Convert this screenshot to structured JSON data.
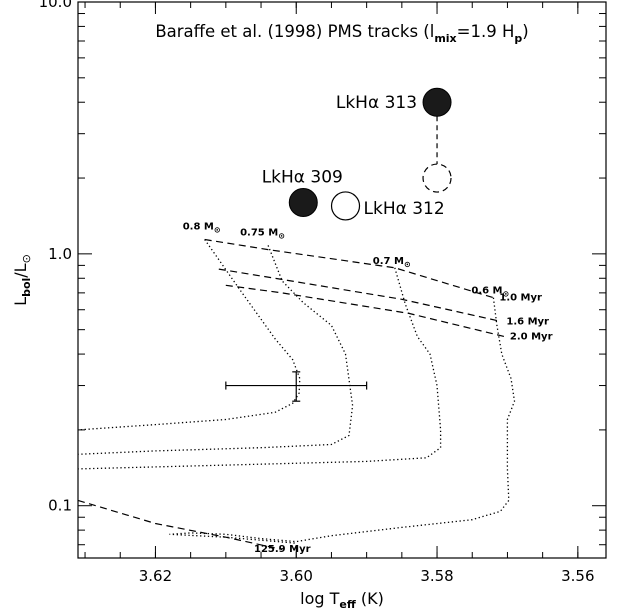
{
  "chart_data": {
    "type": "scatter",
    "title": "Baraffe et al. (1998) PMS tracks (l",
    "title_sub1": "mix",
    "title_mid": "=1.9 H",
    "title_sub2": "p",
    "title_end": ")",
    "xlabel": "log T",
    "xlabel_sub": "eff",
    "xlabel_end": " (K)",
    "ylabel": "L",
    "ylabel_sub1": "bol",
    "ylabel_mid": "/L",
    "ylabel_sub2": "⊙",
    "xlim": [
      3.631,
      3.556
    ],
    "ylim": [
      0.062,
      10.0
    ],
    "yscale": "log",
    "grid": false,
    "x_ticks": [
      {
        "value": 3.62,
        "label": "3.62"
      },
      {
        "value": 3.6,
        "label": "3.60"
      },
      {
        "value": 3.58,
        "label": "3.58"
      },
      {
        "value": 3.56,
        "label": "3.56"
      }
    ],
    "y_ticks": [
      {
        "value": 0.1,
        "label": "0.1"
      },
      {
        "value": 1.0,
        "label": "1.0"
      },
      {
        "value": 10.0,
        "label": "10.0"
      }
    ],
    "stars": [
      {
        "name": "LkHα 313",
        "x": 3.58,
        "y": 4.0,
        "fill": "#1a1a1a",
        "style": "filled",
        "label_side": "left"
      },
      {
        "name": "LkHα 309",
        "x": 3.599,
        "y": 1.6,
        "fill": "#1a1a1a",
        "style": "filled",
        "label_side": "above"
      },
      {
        "name": "LkHα 312",
        "x": 3.593,
        "y": 1.55,
        "fill": "#ffffff",
        "style": "open",
        "label_side": "right"
      },
      {
        "name": "",
        "x": 3.58,
        "y": 2.0,
        "fill": "none",
        "style": "dashed-open",
        "label_side": "none"
      }
    ],
    "star_connector": {
      "x": 3.58,
      "y_from": 4.0,
      "y_to": 2.0
    },
    "error_bar": {
      "x": 3.6,
      "y": 0.3,
      "x_err": 0.01,
      "y_low": 0.26,
      "y_high": 0.34
    },
    "tracks": [
      {
        "mass": "0.8 M",
        "mass_sub": "⊙",
        "points": [
          [
            3.613,
            1.14
          ],
          [
            3.608,
            0.72
          ],
          [
            3.603,
            0.46
          ],
          [
            3.6005,
            0.38
          ],
          [
            3.5995,
            0.32
          ],
          [
            3.5996,
            0.28
          ],
          [
            3.6005,
            0.255
          ],
          [
            3.603,
            0.235
          ],
          [
            3.61,
            0.22
          ],
          [
            3.62,
            0.21
          ],
          [
            3.631,
            0.2
          ]
        ]
      },
      {
        "mass": "0.75 M",
        "mass_sub": "⊙",
        "points": [
          [
            3.604,
            1.08
          ],
          [
            3.602,
            0.78
          ],
          [
            3.599,
            0.64
          ],
          [
            3.595,
            0.52
          ],
          [
            3.593,
            0.4
          ],
          [
            3.592,
            0.25
          ],
          [
            3.5925,
            0.19
          ],
          [
            3.595,
            0.175
          ],
          [
            3.605,
            0.17
          ],
          [
            3.62,
            0.165
          ],
          [
            3.631,
            0.16
          ]
        ]
      },
      {
        "mass": "0.7 M",
        "mass_sub": "⊙",
        "points": [
          [
            3.586,
            0.88
          ],
          [
            3.5845,
            0.63
          ],
          [
            3.5828,
            0.47
          ],
          [
            3.581,
            0.4
          ],
          [
            3.58,
            0.3
          ],
          [
            3.5795,
            0.2
          ],
          [
            3.5795,
            0.17
          ],
          [
            3.5815,
            0.155
          ],
          [
            3.59,
            0.15
          ],
          [
            3.61,
            0.145
          ],
          [
            3.631,
            0.14
          ]
        ]
      },
      {
        "mass": "0.6 M",
        "mass_sub": "⊙",
        "points": [
          [
            3.572,
            0.67
          ],
          [
            3.5715,
            0.52
          ],
          [
            3.5708,
            0.4
          ],
          [
            3.5695,
            0.32
          ],
          [
            3.569,
            0.26
          ],
          [
            3.57,
            0.22
          ],
          [
            3.57,
            0.14
          ],
          [
            3.5698,
            0.105
          ],
          [
            3.571,
            0.095
          ],
          [
            3.575,
            0.088
          ],
          [
            3.585,
            0.082
          ],
          [
            3.595,
            0.076
          ],
          [
            3.6,
            0.072
          ],
          [
            3.605,
            0.074
          ],
          [
            3.61,
            0.077
          ],
          [
            3.615,
            0.078
          ],
          [
            3.618,
            0.077
          ],
          [
            3.61,
            0.075
          ],
          [
            3.6,
            0.071
          ]
        ]
      }
    ],
    "isochrones": [
      {
        "label": "1.0 Myr",
        "points": [
          [
            3.613,
            1.14
          ],
          [
            3.604,
            1.04
          ],
          [
            3.586,
            0.88
          ],
          [
            3.572,
            0.67
          ]
        ]
      },
      {
        "label": "1.6 Myr",
        "points": [
          [
            3.611,
            0.87
          ],
          [
            3.603,
            0.8
          ],
          [
            3.585,
            0.66
          ],
          [
            3.571,
            0.54
          ]
        ]
      },
      {
        "label": "2.0 Myr",
        "points": [
          [
            3.61,
            0.75
          ],
          [
            3.602,
            0.7
          ],
          [
            3.584,
            0.58
          ],
          [
            3.5705,
            0.47
          ]
        ]
      },
      {
        "label": "125.9 Myr",
        "points": [
          [
            3.631,
            0.105
          ],
          [
            3.62,
            0.085
          ],
          [
            3.61,
            0.075
          ],
          [
            3.602,
            0.067
          ]
        ]
      }
    ]
  }
}
